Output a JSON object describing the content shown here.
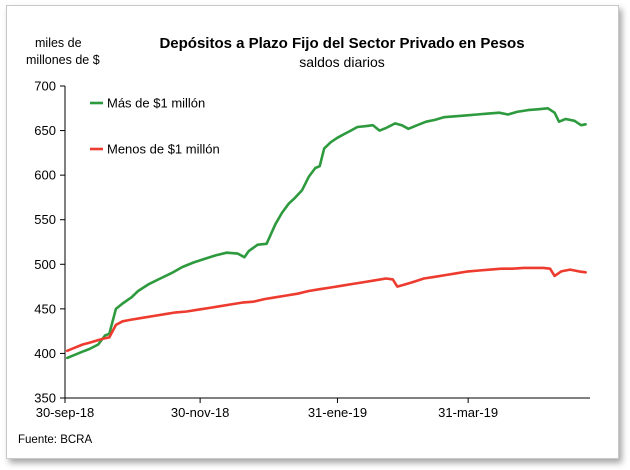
{
  "chart_data": {
    "type": "line",
    "title": "Depósitos a Plazo Fijo del Sector Privado en Pesos",
    "subtitle": "saldos diarios",
    "ylabel_line1": "miles de",
    "ylabel_line2": "millones de $",
    "source": "Fuente: BCRA",
    "ylim": [
      350,
      700
    ],
    "yticks": [
      "350",
      "400",
      "450",
      "500",
      "550",
      "600",
      "650",
      "700"
    ],
    "xlim": [
      "2018-09-30",
      "2019-05-25"
    ],
    "xticks": [
      {
        "date": "2018-09-30",
        "label": "30-sep-18"
      },
      {
        "date": "2018-11-30",
        "label": "30-nov-18"
      },
      {
        "date": "2019-01-31",
        "label": "31-ene-19"
      },
      {
        "date": "2019-03-31",
        "label": "31-mar-19"
      }
    ],
    "legend_position": "top-left",
    "series": [
      {
        "name": "Más de $1 millón",
        "color": "#2e9a3e",
        "points": [
          [
            "2018-10-01",
            395
          ],
          [
            "2018-10-04",
            398
          ],
          [
            "2018-10-08",
            402
          ],
          [
            "2018-10-11",
            405
          ],
          [
            "2018-10-15",
            410
          ],
          [
            "2018-10-18",
            420
          ],
          [
            "2018-10-20",
            422
          ],
          [
            "2018-10-23",
            450
          ],
          [
            "2018-10-26",
            456
          ],
          [
            "2018-10-30",
            463
          ],
          [
            "2018-11-02",
            470
          ],
          [
            "2018-11-07",
            478
          ],
          [
            "2018-11-12",
            484
          ],
          [
            "2018-11-17",
            490
          ],
          [
            "2018-11-22",
            497
          ],
          [
            "2018-11-27",
            502
          ],
          [
            "2018-12-02",
            506
          ],
          [
            "2018-12-07",
            510
          ],
          [
            "2018-12-12",
            513
          ],
          [
            "2018-12-17",
            512
          ],
          [
            "2018-12-20",
            508
          ],
          [
            "2018-12-22",
            515
          ],
          [
            "2018-12-26",
            522
          ],
          [
            "2018-12-30",
            523
          ],
          [
            "2019-01-03",
            545
          ],
          [
            "2019-01-06",
            558
          ],
          [
            "2019-01-09",
            568
          ],
          [
            "2019-01-12",
            575
          ],
          [
            "2019-01-15",
            583
          ],
          [
            "2019-01-18",
            598
          ],
          [
            "2019-01-21",
            608
          ],
          [
            "2019-01-23",
            610
          ],
          [
            "2019-01-25",
            630
          ],
          [
            "2019-01-28",
            637
          ],
          [
            "2019-01-31",
            642
          ],
          [
            "2019-02-03",
            646
          ],
          [
            "2019-02-06",
            650
          ],
          [
            "2019-02-09",
            654
          ],
          [
            "2019-02-13",
            655
          ],
          [
            "2019-02-16",
            656
          ],
          [
            "2019-02-19",
            650
          ],
          [
            "2019-02-22",
            653
          ],
          [
            "2019-02-26",
            658
          ],
          [
            "2019-03-01",
            656
          ],
          [
            "2019-03-04",
            652
          ],
          [
            "2019-03-08",
            656
          ],
          [
            "2019-03-12",
            660
          ],
          [
            "2019-03-16",
            662
          ],
          [
            "2019-03-20",
            665
          ],
          [
            "2019-03-25",
            666
          ],
          [
            "2019-03-30",
            667
          ],
          [
            "2019-04-04",
            668
          ],
          [
            "2019-04-09",
            669
          ],
          [
            "2019-04-14",
            670
          ],
          [
            "2019-04-18",
            668
          ],
          [
            "2019-04-22",
            671
          ],
          [
            "2019-04-27",
            673
          ],
          [
            "2019-05-02",
            674
          ],
          [
            "2019-05-06",
            675
          ],
          [
            "2019-05-09",
            670
          ],
          [
            "2019-05-11",
            660
          ],
          [
            "2019-05-14",
            663
          ],
          [
            "2019-05-18",
            661
          ],
          [
            "2019-05-21",
            656
          ],
          [
            "2019-05-23",
            657
          ]
        ]
      },
      {
        "name": "Menos de $1 millón",
        "color": "#ee3b2f",
        "points": [
          [
            "2018-10-01",
            403
          ],
          [
            "2018-10-04",
            406
          ],
          [
            "2018-10-08",
            410
          ],
          [
            "2018-10-11",
            412
          ],
          [
            "2018-10-15",
            415
          ],
          [
            "2018-10-18",
            417
          ],
          [
            "2018-10-20",
            418
          ],
          [
            "2018-10-23",
            432
          ],
          [
            "2018-10-26",
            436
          ],
          [
            "2018-10-30",
            438
          ],
          [
            "2018-11-04",
            440
          ],
          [
            "2018-11-09",
            442
          ],
          [
            "2018-11-14",
            444
          ],
          [
            "2018-11-19",
            446
          ],
          [
            "2018-11-24",
            447
          ],
          [
            "2018-11-29",
            449
          ],
          [
            "2018-12-04",
            451
          ],
          [
            "2018-12-09",
            453
          ],
          [
            "2018-12-14",
            455
          ],
          [
            "2018-12-19",
            457
          ],
          [
            "2018-12-24",
            458
          ],
          [
            "2018-12-29",
            461
          ],
          [
            "2019-01-03",
            463
          ],
          [
            "2019-01-08",
            465
          ],
          [
            "2019-01-13",
            467
          ],
          [
            "2019-01-18",
            470
          ],
          [
            "2019-01-23",
            472
          ],
          [
            "2019-01-28",
            474
          ],
          [
            "2019-02-02",
            476
          ],
          [
            "2019-02-07",
            478
          ],
          [
            "2019-02-12",
            480
          ],
          [
            "2019-02-17",
            482
          ],
          [
            "2019-02-22",
            484
          ],
          [
            "2019-02-25",
            483
          ],
          [
            "2019-02-27",
            475
          ],
          [
            "2019-03-02",
            477
          ],
          [
            "2019-03-06",
            480
          ],
          [
            "2019-03-11",
            484
          ],
          [
            "2019-03-16",
            486
          ],
          [
            "2019-03-21",
            488
          ],
          [
            "2019-03-26",
            490
          ],
          [
            "2019-03-31",
            492
          ],
          [
            "2019-04-05",
            493
          ],
          [
            "2019-04-10",
            494
          ],
          [
            "2019-04-15",
            495
          ],
          [
            "2019-04-20",
            495
          ],
          [
            "2019-04-25",
            496
          ],
          [
            "2019-04-30",
            496
          ],
          [
            "2019-05-04",
            496
          ],
          [
            "2019-05-07",
            495
          ],
          [
            "2019-05-09",
            487
          ],
          [
            "2019-05-12",
            492
          ],
          [
            "2019-05-16",
            494
          ],
          [
            "2019-05-20",
            492
          ],
          [
            "2019-05-23",
            491
          ]
        ]
      }
    ]
  }
}
